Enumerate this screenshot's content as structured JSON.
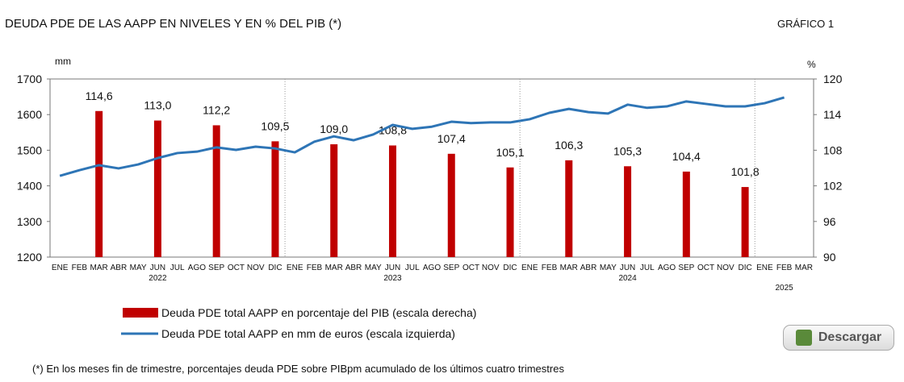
{
  "chart_data": {
    "type": "combo",
    "title": "DEUDA PDE DE LAS AAPP EN NIVELES Y EN % DEL PIB (*)",
    "chart_label": "GRÁFICO 1",
    "y_axis_label": "mm",
    "y2_axis_label": "%",
    "categories": [
      "ENE",
      "FEB",
      "MAR",
      "ABR",
      "MAY",
      "JUN",
      "JUL",
      "AGO",
      "SEP",
      "OCT",
      "NOV",
      "DIC",
      "ENE",
      "FEB",
      "MAR",
      "ABR",
      "MAY",
      "JUN",
      "JUL",
      "AGO",
      "SEP",
      "OCT",
      "NOV",
      "DIC",
      "ENE",
      "FEB",
      "MAR",
      "ABR",
      "MAY",
      "JUN",
      "JUL",
      "AGO",
      "SEP",
      "OCT",
      "NOV",
      "DIC",
      "ENE",
      "FEB",
      "MAR"
    ],
    "years": [
      "2022",
      "2023",
      "2024",
      "2025"
    ],
    "ylim": [
      1200,
      1700
    ],
    "yticks": [
      1200,
      1300,
      1400,
      1500,
      1600,
      1700
    ],
    "y2lim": [
      90,
      120
    ],
    "y2ticks": [
      90,
      96,
      102,
      108,
      114,
      120
    ],
    "series": [
      {
        "name": "Deuda PDE total AAPP en porcentaje del PIB (escala derecha)",
        "type": "bar",
        "axis": "y2",
        "color": "#c00000",
        "values": [
          null,
          null,
          114.6,
          null,
          null,
          113.0,
          null,
          null,
          112.2,
          null,
          null,
          109.5,
          null,
          null,
          109.0,
          null,
          null,
          108.8,
          null,
          null,
          107.4,
          null,
          null,
          105.1,
          null,
          null,
          106.3,
          null,
          null,
          105.3,
          null,
          null,
          104.4,
          null,
          null,
          101.8,
          null,
          null,
          null
        ],
        "value_labels": [
          null,
          null,
          "114,6",
          null,
          null,
          "113,0",
          null,
          null,
          "112,2",
          null,
          null,
          "109,5",
          null,
          null,
          "109,0",
          null,
          null,
          "108,8",
          null,
          null,
          "107,4",
          null,
          null,
          "105,1",
          null,
          null,
          "106,3",
          null,
          null,
          "105,3",
          null,
          null,
          "104,4",
          null,
          null,
          "101,8",
          null,
          null,
          null
        ]
      },
      {
        "name": "Deuda PDE total AAPP en mm de euros (escala izquierda)",
        "type": "line",
        "axis": "y",
        "color": "#2e75b6",
        "values": [
          1428,
          1444,
          1458,
          1449,
          1460,
          1478,
          1492,
          1496,
          1508,
          1501,
          1510,
          1505,
          1494,
          1524,
          1539,
          1528,
          1544,
          1571,
          1560,
          1566,
          1580,
          1576,
          1578,
          1578,
          1587,
          1605,
          1616,
          1607,
          1603,
          1628,
          1619,
          1623,
          1637,
          1630,
          1623,
          1623,
          1632,
          1648,
          null
        ]
      }
    ],
    "footnote": "(*) En los meses fin de trimestre, porcentajes deuda PDE sobre PIBpm acumulado de los últimos cuatro trimestres",
    "button": "Descargar"
  }
}
